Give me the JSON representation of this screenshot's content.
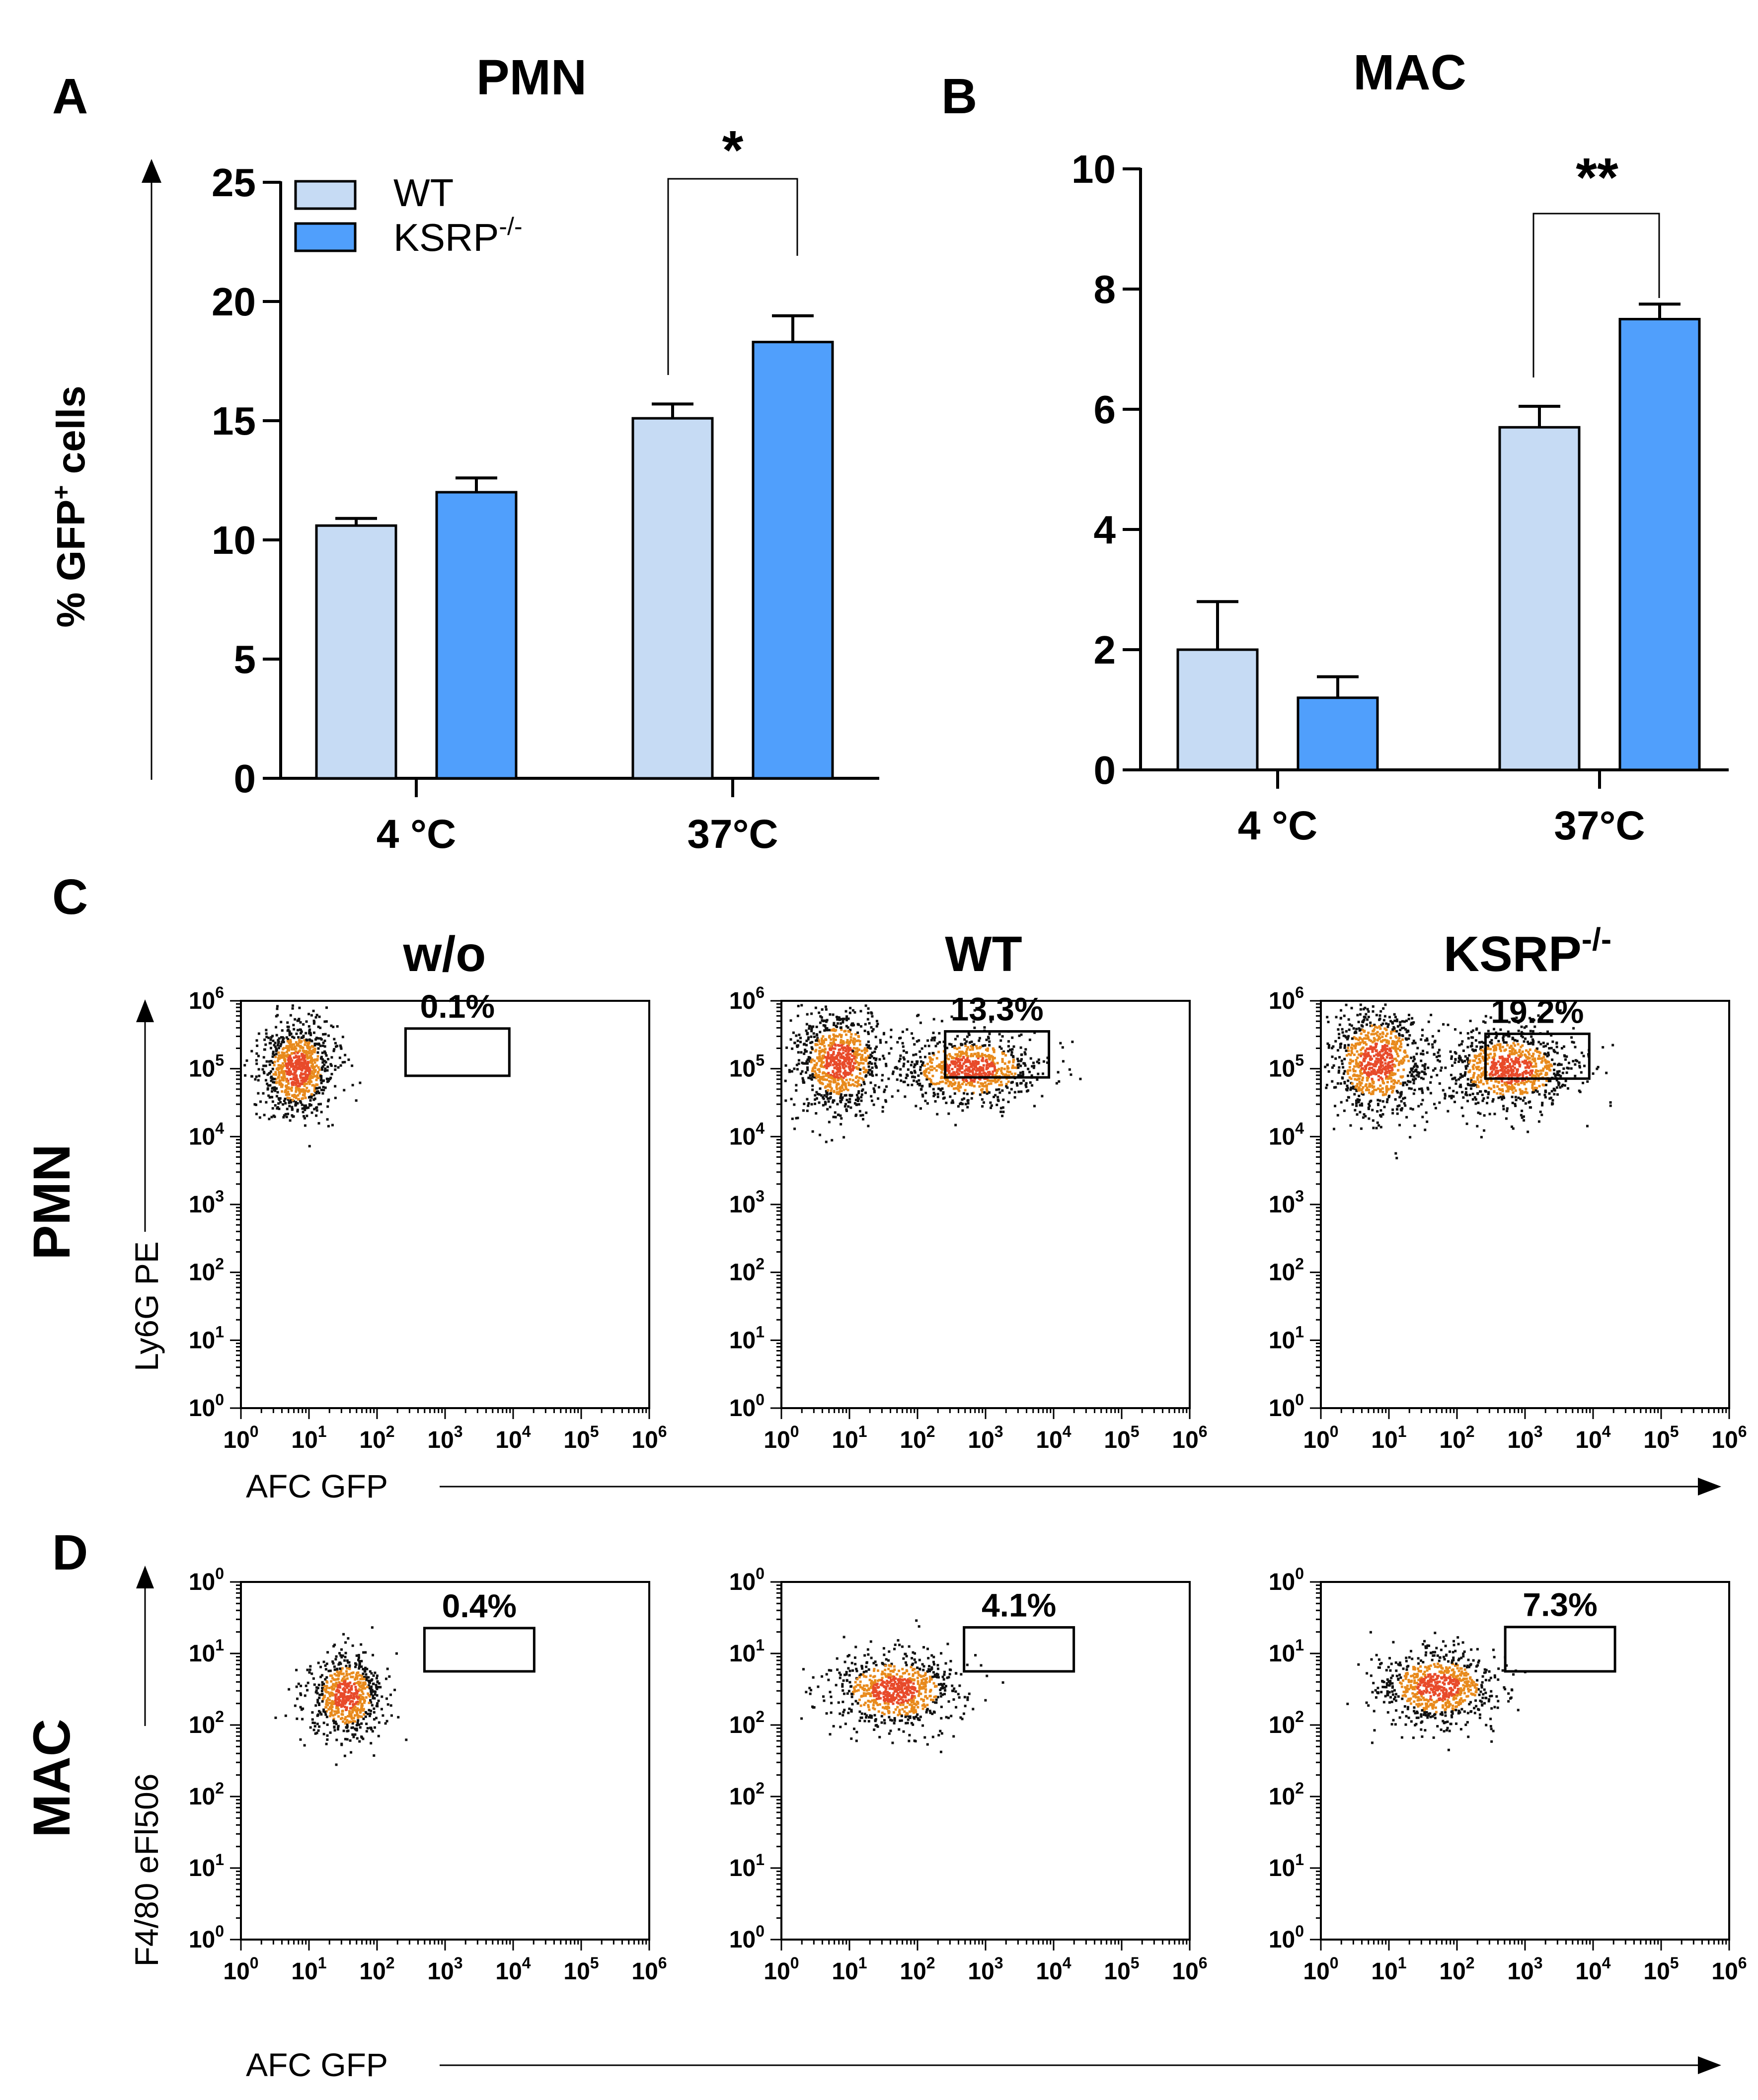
{
  "colors": {
    "wt": "#c6dbf4",
    "ksrp": "#509ffc",
    "dot_dark": "#111111",
    "dot_mid": "#e88a1c",
    "dot_hot": "#e84a2a"
  },
  "legend": {
    "wt": "WT",
    "ksrp": "KSRP",
    "ksrp_sup": "-/-"
  },
  "chart_data": [
    {
      "panel": "A",
      "type": "bar",
      "title": "PMN",
      "ylabel": "% GFP",
      "ylabel_sup": "+",
      "ylabel_tail": " cells",
      "ylim": [
        0,
        25
      ],
      "yticks": [
        "0",
        "5",
        "10",
        "15",
        "20",
        "25"
      ],
      "categories": [
        "4 °C",
        "37°C"
      ],
      "series": [
        {
          "name": "WT",
          "values": [
            10.6,
            15.1
          ],
          "errors": [
            0.3,
            0.6
          ]
        },
        {
          "name": "KSRP-/-",
          "values": [
            12.0,
            18.3
          ],
          "errors": [
            0.6,
            1.1
          ]
        }
      ],
      "significance": "*"
    },
    {
      "panel": "B",
      "type": "bar",
      "title": "MAC",
      "ylim": [
        0,
        10
      ],
      "yticks": [
        "0",
        "2",
        "4",
        "6",
        "8",
        "10"
      ],
      "categories": [
        "4 °C",
        "37°C"
      ],
      "series": [
        {
          "name": "WT",
          "values": [
            2.0,
            5.7
          ],
          "errors": [
            0.8,
            0.35
          ]
        },
        {
          "name": "KSRP-/-",
          "values": [
            1.2,
            7.5
          ],
          "errors": [
            0.35,
            0.25
          ]
        }
      ],
      "significance": "**"
    },
    {
      "panel": "C",
      "type": "scatter",
      "row_label": "PMN",
      "column_titles": [
        "w/o",
        "WT",
        "KSRP"
      ],
      "column_title_sup": "-/-",
      "xlabel": "AFC GFP",
      "ylabel": "Ly6G PE",
      "x_ticks": [
        "0",
        "1",
        "2",
        "3",
        "4",
        "5",
        "6"
      ],
      "y_ticks": [
        "0",
        "1",
        "2",
        "3",
        "4",
        "5",
        "6"
      ],
      "gates": [
        "0.1%",
        "13.3%",
        "19.2%"
      ]
    },
    {
      "panel": "D",
      "type": "scatter",
      "row_label": "MAC",
      "xlabel": "AFC GFP",
      "ylabel": "F4/80 eFl506",
      "x_ticks": [
        "0",
        "1",
        "2",
        "3",
        "4",
        "5",
        "6"
      ],
      "y_ticks": [
        "0",
        "1",
        "2",
        "2",
        "1",
        "0"
      ],
      "gates": [
        "0.4%",
        "4.1%",
        "7.3%"
      ]
    }
  ]
}
